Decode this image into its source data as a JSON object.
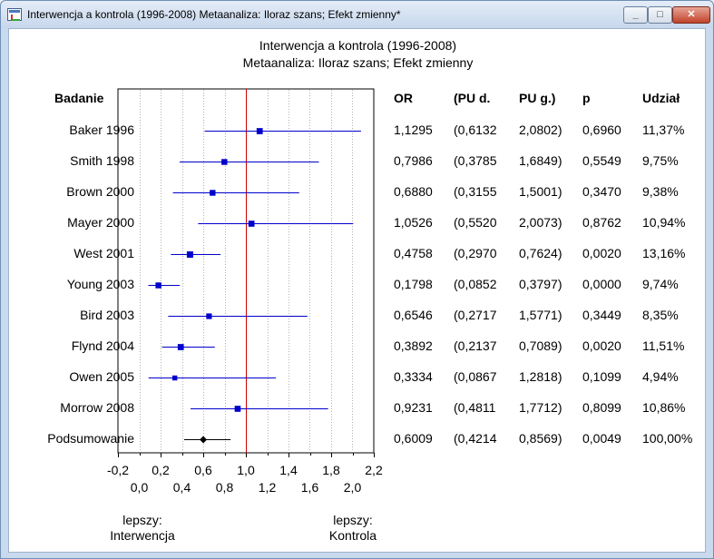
{
  "window": {
    "title": "Interwencja a kontrola (1996-2008) Metaanaliza: Iloraz szans; Efekt zmienny*",
    "min_label": "_",
    "max_label": "□",
    "close_label": "✕"
  },
  "headers": {
    "study": "Badanie",
    "or": "OR",
    "ci_low": "(PU d.",
    "ci_high": "PU g.)",
    "p": "p",
    "weight": "Udział"
  },
  "rows": [
    {
      "study": "Baker 1996",
      "or": "1,1295",
      "low": "(0,6132",
      "high": "2,0802)",
      "p": "0,6960",
      "weight": "11,37%"
    },
    {
      "study": "Smith 1998",
      "or": "0,7986",
      "low": "(0,3785",
      "high": "1,6849)",
      "p": "0,5549",
      "weight": "9,75%"
    },
    {
      "study": "Brown 2000",
      "or": "0,6880",
      "low": "(0,3155",
      "high": "1,5001)",
      "p": "0,3470",
      "weight": "9,38%"
    },
    {
      "study": "Mayer 2000",
      "or": "1,0526",
      "low": "(0,5520",
      "high": "2,0073)",
      "p": "0,8762",
      "weight": "10,94%"
    },
    {
      "study": "West 2001",
      "or": "0,4758",
      "low": "(0,2970",
      "high": "0,7624)",
      "p": "0,0020",
      "weight": "13,16%"
    },
    {
      "study": "Young 2003",
      "or": "0,1798",
      "low": "(0,0852",
      "high": "0,3797)",
      "p": "0,0000",
      "weight": "9,74%"
    },
    {
      "study": "Bird 2003",
      "or": "0,6546",
      "low": "(0,2717",
      "high": "1,5771)",
      "p": "0,3449",
      "weight": "8,35%"
    },
    {
      "study": "Flynd 2004",
      "or": "0,3892",
      "low": "(0,2137",
      "high": "0,7089)",
      "p": "0,0020",
      "weight": "11,51%"
    },
    {
      "study": "Owen 2005",
      "or": "0,3334",
      "low": "(0,0867",
      "high": "1,2818)",
      "p": "0,1099",
      "weight": "4,94%"
    },
    {
      "study": "Morrow 2008",
      "or": "0,9231",
      "low": "(0,4811",
      "high": "1,7712)",
      "p": "0,8099",
      "weight": "10,86%"
    },
    {
      "study": "Podsumowanie",
      "or": "0,6009",
      "low": "(0,4214",
      "high": "0,8569)",
      "p": "0,0049",
      "weight": "100,00%"
    }
  ],
  "notes": {
    "left_line1": "lepszy:",
    "left_line2": "Interwencja",
    "right_line1": "lepszy:",
    "right_line2": "Kontrola"
  },
  "chart_data": {
    "type": "forest",
    "title": "Interwencja a kontrola (1996-2008)",
    "subtitle": "Metaanaliza: Iloraz szans; Efekt zmienny",
    "xlim": [
      -0.2,
      2.2
    ],
    "reference_line": 1.0,
    "ticks_top": [
      "-0,2",
      "0,2",
      "0,6",
      "1,0",
      "1,4",
      "1,8",
      "2,2"
    ],
    "ticks_top_values": [
      -0.2,
      0.2,
      0.6,
      1.0,
      1.4,
      1.8,
      2.2
    ],
    "ticks_bottom": [
      "0,0",
      "0,4",
      "0,8",
      "1,2",
      "1,6",
      "2,0"
    ],
    "ticks_bottom_values": [
      0.0,
      0.4,
      0.8,
      1.2,
      1.6,
      2.0
    ],
    "studies": [
      {
        "name": "Baker 1996",
        "or": 1.1295,
        "low": 0.6132,
        "high": 2.0802,
        "weight": 11.37
      },
      {
        "name": "Smith 1998",
        "or": 0.7986,
        "low": 0.3785,
        "high": 1.6849,
        "weight": 9.75
      },
      {
        "name": "Brown 2000",
        "or": 0.688,
        "low": 0.3155,
        "high": 1.5001,
        "weight": 9.38
      },
      {
        "name": "Mayer 2000",
        "or": 1.0526,
        "low": 0.552,
        "high": 2.0073,
        "weight": 10.94
      },
      {
        "name": "West 2001",
        "or": 0.4758,
        "low": 0.297,
        "high": 0.7624,
        "weight": 13.16
      },
      {
        "name": "Young 2003",
        "or": 0.1798,
        "low": 0.0852,
        "high": 0.3797,
        "weight": 9.74
      },
      {
        "name": "Bird 2003",
        "or": 0.6546,
        "low": 0.2717,
        "high": 1.5771,
        "weight": 8.35
      },
      {
        "name": "Flynd 2004",
        "or": 0.3892,
        "low": 0.2137,
        "high": 0.7089,
        "weight": 11.51
      },
      {
        "name": "Owen 2005",
        "or": 0.3334,
        "low": 0.0867,
        "high": 1.2818,
        "weight": 4.94
      },
      {
        "name": "Morrow 2008",
        "or": 0.9231,
        "low": 0.4811,
        "high": 1.7712,
        "weight": 10.86
      }
    ],
    "summary": {
      "name": "Podsumowanie",
      "or": 0.6009,
      "low": 0.4214,
      "high": 0.8569
    },
    "colors": {
      "ci": "#0000cc",
      "summary": "#000000",
      "reference": "#cc0000",
      "grid": "#b0b0b0"
    }
  }
}
